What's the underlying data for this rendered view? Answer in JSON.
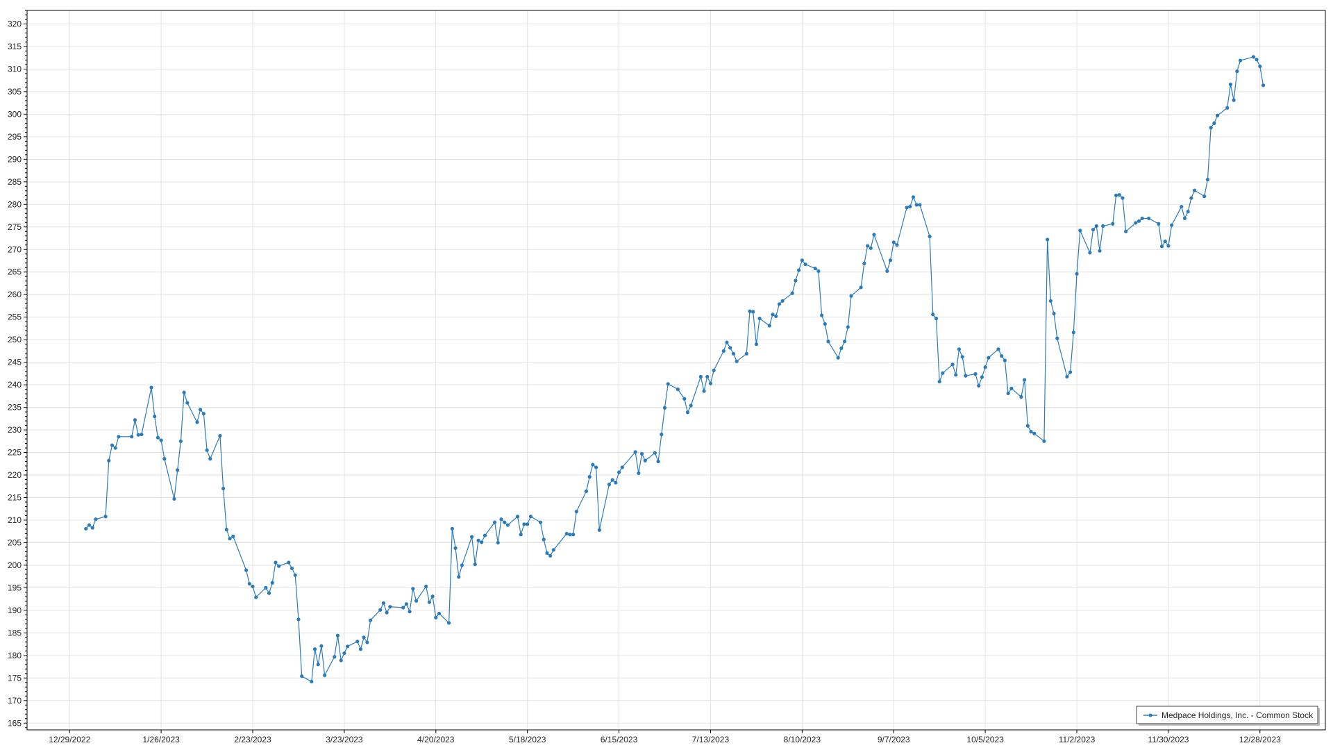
{
  "chart_data": {
    "type": "line",
    "title": "",
    "xlabel": "",
    "ylabel": "",
    "grid": true,
    "legend_placement": "bottom-right",
    "ylim": [
      163.5,
      323
    ],
    "xlim": [
      "2022-12-16",
      "2024-01-17"
    ],
    "yticks": [
      165,
      170,
      175,
      180,
      185,
      190,
      195,
      200,
      205,
      210,
      215,
      220,
      225,
      230,
      235,
      240,
      245,
      250,
      255,
      260,
      265,
      270,
      275,
      280,
      285,
      290,
      295,
      300,
      305,
      310,
      315,
      320
    ],
    "xticks": [
      "12/29/2022",
      "1/26/2023",
      "2/23/2023",
      "3/23/2023",
      "4/20/2023",
      "5/18/2023",
      "6/15/2023",
      "7/13/2023",
      "8/10/2023",
      "9/7/2023",
      "10/5/2023",
      "11/2/2023",
      "11/30/2023",
      "12/28/2023"
    ],
    "colors": {
      "series": "#2b7bba",
      "grid": "#e3e3e3",
      "axis": "#000000"
    },
    "series": [
      {
        "name": "Medpace Holdings, Inc. - Common Stock",
        "marker": "circle",
        "points": [
          [
            "2023-01-03",
            208.1
          ],
          [
            "2023-01-04",
            208.9
          ],
          [
            "2023-01-05",
            208.3
          ],
          [
            "2023-01-06",
            210.2
          ],
          [
            "2023-01-09",
            210.8
          ],
          [
            "2023-01-10",
            223.2
          ],
          [
            "2023-01-11",
            226.6
          ],
          [
            "2023-01-12",
            226.0
          ],
          [
            "2023-01-13",
            228.5
          ],
          [
            "2023-01-17",
            228.5
          ],
          [
            "2023-01-18",
            232.2
          ],
          [
            "2023-01-19",
            228.9
          ],
          [
            "2023-01-20",
            229.0
          ],
          [
            "2023-01-23",
            239.4
          ],
          [
            "2023-01-24",
            233.0
          ],
          [
            "2023-01-25",
            228.3
          ],
          [
            "2023-01-26",
            227.7
          ],
          [
            "2023-01-27",
            223.6
          ],
          [
            "2023-01-30",
            214.7
          ],
          [
            "2023-01-31",
            221.1
          ],
          [
            "2023-02-01",
            227.5
          ],
          [
            "2023-02-02",
            238.3
          ],
          [
            "2023-02-03",
            236.0
          ],
          [
            "2023-02-06",
            231.7
          ],
          [
            "2023-02-07",
            234.5
          ],
          [
            "2023-02-08",
            233.6
          ],
          [
            "2023-02-09",
            225.5
          ],
          [
            "2023-02-10",
            223.6
          ],
          [
            "2023-02-13",
            228.7
          ],
          [
            "2023-02-14",
            217.0
          ],
          [
            "2023-02-15",
            207.9
          ],
          [
            "2023-02-16",
            205.9
          ],
          [
            "2023-02-17",
            206.4
          ],
          [
            "2023-02-21",
            198.9
          ],
          [
            "2023-02-22",
            195.9
          ],
          [
            "2023-02-23",
            195.3
          ],
          [
            "2023-02-24",
            192.9
          ],
          [
            "2023-02-27",
            195.0
          ],
          [
            "2023-02-28",
            193.8
          ],
          [
            "2023-03-01",
            196.1
          ],
          [
            "2023-03-02",
            200.6
          ],
          [
            "2023-03-03",
            199.8
          ],
          [
            "2023-03-06",
            200.6
          ],
          [
            "2023-03-07",
            199.3
          ],
          [
            "2023-03-08",
            197.8
          ],
          [
            "2023-03-09",
            188.0
          ],
          [
            "2023-03-10",
            175.4
          ],
          [
            "2023-03-13",
            174.2
          ],
          [
            "2023-03-14",
            181.4
          ],
          [
            "2023-03-15",
            178.0
          ],
          [
            "2023-03-16",
            182.1
          ],
          [
            "2023-03-17",
            175.6
          ],
          [
            "2023-03-20",
            179.7
          ],
          [
            "2023-03-21",
            184.4
          ],
          [
            "2023-03-22",
            178.9
          ],
          [
            "2023-03-23",
            180.5
          ],
          [
            "2023-03-24",
            182.0
          ],
          [
            "2023-03-27",
            183.1
          ],
          [
            "2023-03-28",
            181.4
          ],
          [
            "2023-03-29",
            184.0
          ],
          [
            "2023-03-30",
            182.9
          ],
          [
            "2023-03-31",
            187.8
          ],
          [
            "2023-04-03",
            190.1
          ],
          [
            "2023-04-04",
            191.6
          ],
          [
            "2023-04-05",
            189.5
          ],
          [
            "2023-04-06",
            190.8
          ],
          [
            "2023-04-10",
            190.6
          ],
          [
            "2023-04-11",
            191.4
          ],
          [
            "2023-04-12",
            189.7
          ],
          [
            "2023-04-13",
            194.8
          ],
          [
            "2023-04-14",
            192.1
          ],
          [
            "2023-04-17",
            195.3
          ],
          [
            "2023-04-18",
            191.8
          ],
          [
            "2023-04-19",
            193.1
          ],
          [
            "2023-04-20",
            188.4
          ],
          [
            "2023-04-21",
            189.3
          ],
          [
            "2023-04-24",
            187.2
          ],
          [
            "2023-04-25",
            208.1
          ],
          [
            "2023-04-26",
            203.8
          ],
          [
            "2023-04-27",
            197.4
          ],
          [
            "2023-04-28",
            200.0
          ],
          [
            "2023-05-01",
            206.3
          ],
          [
            "2023-05-02",
            200.2
          ],
          [
            "2023-05-03",
            205.5
          ],
          [
            "2023-05-04",
            205.1
          ],
          [
            "2023-05-05",
            206.6
          ],
          [
            "2023-05-08",
            209.5
          ],
          [
            "2023-05-09",
            205.0
          ],
          [
            "2023-05-10",
            210.2
          ],
          [
            "2023-05-11",
            209.5
          ],
          [
            "2023-05-12",
            208.9
          ],
          [
            "2023-05-15",
            210.8
          ],
          [
            "2023-05-16",
            206.8
          ],
          [
            "2023-05-17",
            209.1
          ],
          [
            "2023-05-18",
            209.1
          ],
          [
            "2023-05-19",
            210.8
          ],
          [
            "2023-05-22",
            209.5
          ],
          [
            "2023-05-23",
            205.7
          ],
          [
            "2023-05-24",
            202.7
          ],
          [
            "2023-05-25",
            202.1
          ],
          [
            "2023-05-26",
            203.4
          ],
          [
            "2023-05-30",
            207.0
          ],
          [
            "2023-05-31",
            206.8
          ],
          [
            "2023-06-01",
            206.8
          ],
          [
            "2023-06-02",
            211.9
          ],
          [
            "2023-06-05",
            216.4
          ],
          [
            "2023-06-06",
            219.6
          ],
          [
            "2023-06-07",
            222.3
          ],
          [
            "2023-06-08",
            221.7
          ],
          [
            "2023-06-09",
            207.8
          ],
          [
            "2023-06-12",
            217.9
          ],
          [
            "2023-06-13",
            218.9
          ],
          [
            "2023-06-14",
            218.3
          ],
          [
            "2023-06-15",
            220.6
          ],
          [
            "2023-06-16",
            221.7
          ],
          [
            "2023-06-20",
            225.1
          ],
          [
            "2023-06-21",
            220.4
          ],
          [
            "2023-06-22",
            224.7
          ],
          [
            "2023-06-23",
            223.2
          ],
          [
            "2023-06-26",
            224.9
          ],
          [
            "2023-06-27",
            223.0
          ],
          [
            "2023-06-28",
            229.0
          ],
          [
            "2023-06-29",
            234.9
          ],
          [
            "2023-06-30",
            240.2
          ],
          [
            "2023-07-03",
            239.0
          ],
          [
            "2023-07-05",
            236.9
          ],
          [
            "2023-07-06",
            233.9
          ],
          [
            "2023-07-07",
            235.4
          ],
          [
            "2023-07-10",
            241.8
          ],
          [
            "2023-07-11",
            238.6
          ],
          [
            "2023-07-12",
            241.8
          ],
          [
            "2023-07-13",
            240.3
          ],
          [
            "2023-07-14",
            243.2
          ],
          [
            "2023-07-17",
            247.5
          ],
          [
            "2023-07-18",
            249.4
          ],
          [
            "2023-07-19",
            248.2
          ],
          [
            "2023-07-20",
            246.9
          ],
          [
            "2023-07-21",
            245.2
          ],
          [
            "2023-07-24",
            246.9
          ],
          [
            "2023-07-25",
            256.3
          ],
          [
            "2023-07-26",
            256.2
          ],
          [
            "2023-07-27",
            249.0
          ],
          [
            "2023-07-28",
            254.7
          ],
          [
            "2023-07-31",
            253.1
          ],
          [
            "2023-08-01",
            255.6
          ],
          [
            "2023-08-02",
            255.2
          ],
          [
            "2023-08-03",
            257.9
          ],
          [
            "2023-08-04",
            258.6
          ],
          [
            "2023-08-07",
            260.3
          ],
          [
            "2023-08-08",
            263.1
          ],
          [
            "2023-08-09",
            265.4
          ],
          [
            "2023-08-10",
            267.6
          ],
          [
            "2023-08-11",
            266.7
          ],
          [
            "2023-08-14",
            265.8
          ],
          [
            "2023-08-15",
            265.2
          ],
          [
            "2023-08-16",
            255.4
          ],
          [
            "2023-08-17",
            253.5
          ],
          [
            "2023-08-18",
            249.6
          ],
          [
            "2023-08-21",
            246.0
          ],
          [
            "2023-08-22",
            248.1
          ],
          [
            "2023-08-23",
            249.6
          ],
          [
            "2023-08-24",
            252.8
          ],
          [
            "2023-08-25",
            259.7
          ],
          [
            "2023-08-28",
            261.6
          ],
          [
            "2023-08-29",
            266.9
          ],
          [
            "2023-08-30",
            270.8
          ],
          [
            "2023-08-31",
            270.3
          ],
          [
            "2023-09-01",
            273.3
          ],
          [
            "2023-09-05",
            265.2
          ],
          [
            "2023-09-06",
            267.6
          ],
          [
            "2023-09-07",
            271.6
          ],
          [
            "2023-09-08",
            271.0
          ],
          [
            "2023-09-11",
            279.3
          ],
          [
            "2023-09-12",
            279.5
          ],
          [
            "2023-09-13",
            281.6
          ],
          [
            "2023-09-14",
            279.9
          ],
          [
            "2023-09-15",
            279.9
          ],
          [
            "2023-09-18",
            272.9
          ],
          [
            "2023-09-19",
            255.6
          ],
          [
            "2023-09-20",
            254.7
          ],
          [
            "2023-09-21",
            240.7
          ],
          [
            "2023-09-22",
            242.6
          ],
          [
            "2023-09-25",
            244.5
          ],
          [
            "2023-09-26",
            242.2
          ],
          [
            "2023-09-27",
            247.9
          ],
          [
            "2023-09-28",
            246.2
          ],
          [
            "2023-09-29",
            242.0
          ],
          [
            "2023-10-02",
            242.4
          ],
          [
            "2023-10-03",
            239.8
          ],
          [
            "2023-10-04",
            241.7
          ],
          [
            "2023-10-05",
            243.9
          ],
          [
            "2023-10-06",
            246.0
          ],
          [
            "2023-10-09",
            247.9
          ],
          [
            "2023-10-10",
            246.4
          ],
          [
            "2023-10-11",
            245.4
          ],
          [
            "2023-10-12",
            238.1
          ],
          [
            "2023-10-13",
            239.2
          ],
          [
            "2023-10-16",
            237.3
          ],
          [
            "2023-10-17",
            241.1
          ],
          [
            "2023-10-18",
            230.9
          ],
          [
            "2023-10-19",
            229.6
          ],
          [
            "2023-10-20",
            229.2
          ],
          [
            "2023-10-23",
            227.5
          ],
          [
            "2023-10-24",
            272.2
          ],
          [
            "2023-10-25",
            258.6
          ],
          [
            "2023-10-26",
            255.8
          ],
          [
            "2023-10-27",
            250.3
          ],
          [
            "2023-10-30",
            241.8
          ],
          [
            "2023-10-31",
            242.8
          ],
          [
            "2023-11-01",
            251.6
          ],
          [
            "2023-11-02",
            264.6
          ],
          [
            "2023-11-03",
            274.2
          ],
          [
            "2023-11-06",
            269.3
          ],
          [
            "2023-11-07",
            274.4
          ],
          [
            "2023-11-08",
            275.2
          ],
          [
            "2023-11-09",
            269.7
          ],
          [
            "2023-11-10",
            275.2
          ],
          [
            "2023-11-13",
            275.7
          ],
          [
            "2023-11-14",
            282.0
          ],
          [
            "2023-11-15",
            282.1
          ],
          [
            "2023-11-16",
            281.4
          ],
          [
            "2023-11-17",
            274.0
          ],
          [
            "2023-11-20",
            275.9
          ],
          [
            "2023-11-21",
            276.3
          ],
          [
            "2023-11-22",
            276.9
          ],
          [
            "2023-11-24",
            276.9
          ],
          [
            "2023-11-27",
            275.7
          ],
          [
            "2023-11-28",
            270.7
          ],
          [
            "2023-11-29",
            271.8
          ],
          [
            "2023-11-30",
            270.8
          ],
          [
            "2023-12-01",
            275.4
          ],
          [
            "2023-12-04",
            279.5
          ],
          [
            "2023-12-05",
            276.9
          ],
          [
            "2023-12-06",
            278.4
          ],
          [
            "2023-12-07",
            281.4
          ],
          [
            "2023-12-08",
            283.1
          ],
          [
            "2023-12-11",
            281.8
          ],
          [
            "2023-12-12",
            285.5
          ],
          [
            "2023-12-13",
            297.0
          ],
          [
            "2023-12-14",
            298.0
          ],
          [
            "2023-12-15",
            299.7
          ],
          [
            "2023-12-18",
            301.4
          ],
          [
            "2023-12-19",
            306.6
          ],
          [
            "2023-12-20",
            303.1
          ],
          [
            "2023-12-21",
            309.5
          ],
          [
            "2023-12-22",
            311.9
          ],
          [
            "2023-12-26",
            312.7
          ],
          [
            "2023-12-27",
            312.1
          ],
          [
            "2023-12-28",
            310.6
          ],
          [
            "2023-12-29",
            306.4
          ]
        ]
      }
    ]
  }
}
